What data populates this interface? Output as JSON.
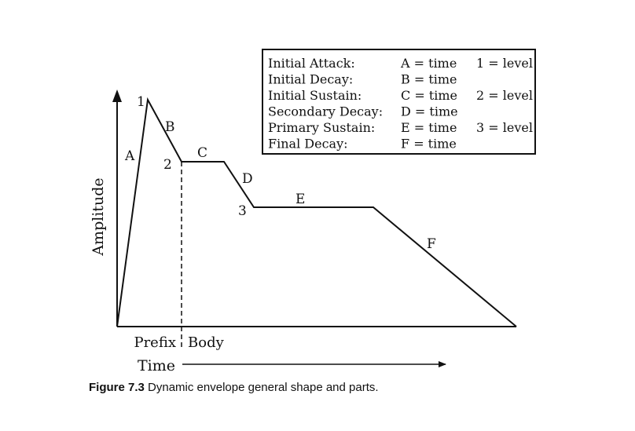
{
  "legend": {
    "rows": [
      {
        "phase": "Initial Attack:",
        "time": "A = time",
        "level": "1 = level"
      },
      {
        "phase": "Initial Decay:",
        "time": "B = time",
        "level": ""
      },
      {
        "phase": "Initial Sustain:",
        "time": "C = time",
        "level": "2 = level"
      },
      {
        "phase": "Secondary Decay:",
        "time": "D = time",
        "level": ""
      },
      {
        "phase": "Primary Sustain:",
        "time": "E = time",
        "level": "3 = level"
      },
      {
        "phase": "Final Decay:",
        "time": "F = time",
        "level": ""
      }
    ]
  },
  "axes": {
    "y_label": "Amplitude",
    "x_label": "Time"
  },
  "segment_labels": {
    "A": "A",
    "B": "B",
    "C": "C",
    "D": "D",
    "E": "E",
    "F": "F"
  },
  "level_labels": {
    "l1": "1",
    "l2": "2",
    "l3": "3"
  },
  "regions": {
    "prefix": "Prefix",
    "body": "Body"
  },
  "caption": {
    "number": "Figure 7.3",
    "text": "Dynamic envelope general shape and parts."
  },
  "colors": {
    "ink": "#111111",
    "background": "#ffffff"
  }
}
